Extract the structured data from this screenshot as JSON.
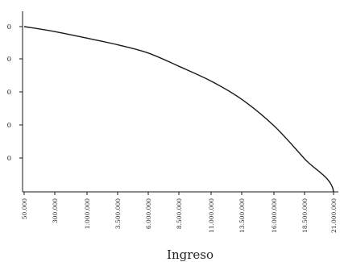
{
  "chart_data": {
    "type": "line",
    "title": "",
    "xlabel": "Ingreso",
    "ylabel": "",
    "x_tick_labels": [
      "50.000",
      "300.000",
      "1.000.000",
      "3.500.000",
      "6.000.000",
      "8.500.000",
      "11.000.000",
      "13.500.000",
      "16.000.000",
      "18.500.000",
      "21.000.000"
    ],
    "y_tick_labels": [
      "0",
      "0",
      "0",
      "0",
      "0"
    ],
    "grid": false,
    "legend": "none",
    "line_color": "#1a1a1a",
    "series": [
      {
        "x": [
          "50.000",
          "300.000",
          "1.000.000",
          "3.500.000",
          "6.000.000",
          "8.500.000",
          "11.000.000",
          "13.500.000",
          "16.000.000",
          "18.500.000",
          "21.000.000"
        ],
        "values": [
          1.0,
          0.97,
          0.93,
          0.89,
          0.84,
          0.76,
          0.67,
          0.56,
          0.4,
          0.2,
          0.0
        ]
      }
    ]
  }
}
